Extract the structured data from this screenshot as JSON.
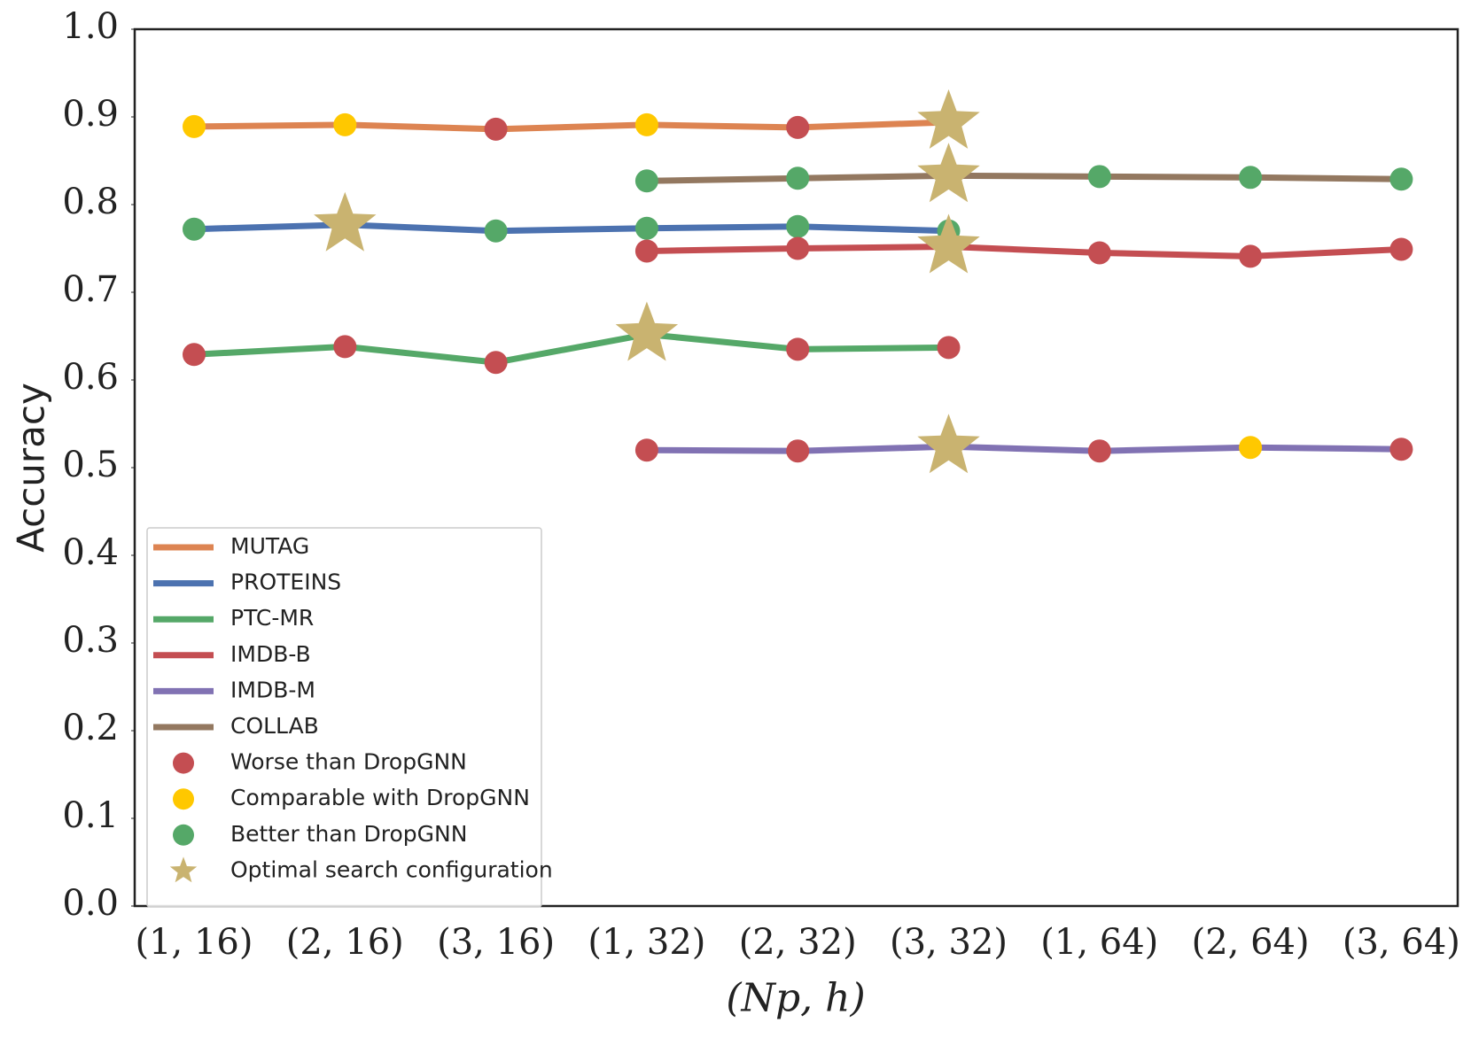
{
  "chart_data": {
    "type": "line",
    "ylabel": "Accuracy",
    "xlabel": "(Np, h)",
    "categories": [
      "(1, 16)",
      "(2, 16)",
      "(3, 16)",
      "(1, 32)",
      "(2, 32)",
      "(3, 32)",
      "(1, 64)",
      "(2, 64)",
      "(3, 64)"
    ],
    "ylim": [
      0,
      1
    ],
    "yticks": [
      {
        "value": 0,
        "label": "0.0"
      },
      {
        "value": 0.1,
        "label": "0.1"
      },
      {
        "value": 0.2,
        "label": "0.2"
      },
      {
        "value": 0.3,
        "label": "0.3"
      },
      {
        "value": 0.4,
        "label": "0.4"
      },
      {
        "value": 0.5,
        "label": "0.5"
      },
      {
        "value": 0.6,
        "label": "0.6"
      },
      {
        "value": 0.7,
        "label": "0.7"
      },
      {
        "value": 0.8,
        "label": "0.8"
      },
      {
        "value": 0.9,
        "label": "0.9"
      },
      {
        "value": 1,
        "label": "1.0"
      }
    ],
    "legend": "lower left",
    "series": [
      {
        "name": "MUTAG",
        "color": "#dd8452",
        "values": [
          0.889,
          0.891,
          0.886,
          0.891,
          0.888,
          0.894,
          null,
          null,
          null
        ],
        "point_kinds": [
          1,
          1,
          0,
          1,
          0,
          3,
          null,
          null,
          null
        ]
      },
      {
        "name": "PROTEINS",
        "color": "#4c72b0",
        "values": [
          0.772,
          0.777,
          0.77,
          0.773,
          0.775,
          0.77,
          null,
          null,
          null
        ],
        "point_kinds": [
          2,
          3,
          2,
          2,
          2,
          2,
          null,
          null,
          null
        ]
      },
      {
        "name": "PTC-MR",
        "color": "#55a868",
        "values": [
          0.629,
          0.638,
          0.62,
          0.652,
          0.635,
          0.637,
          null,
          null,
          null
        ],
        "point_kinds": [
          0,
          0,
          0,
          3,
          0,
          0,
          null,
          null,
          null
        ]
      },
      {
        "name": "IMDB-B",
        "color": "#c44e52",
        "values": [
          null,
          null,
          null,
          0.747,
          0.75,
          0.752,
          0.745,
          0.741,
          0.749
        ],
        "point_kinds": [
          null,
          null,
          null,
          0,
          0,
          3,
          0,
          0,
          0
        ]
      },
      {
        "name": "IMDB-M",
        "color": "#8172b3",
        "values": [
          null,
          null,
          null,
          0.52,
          0.519,
          0.524,
          0.519,
          0.523,
          0.521
        ],
        "point_kinds": [
          null,
          null,
          null,
          0,
          0,
          3,
          0,
          1,
          0
        ]
      },
      {
        "name": "COLLAB",
        "color": "#937860",
        "values": [
          null,
          null,
          null,
          0.827,
          0.83,
          0.833,
          0.832,
          0.831,
          0.829
        ],
        "point_kinds": [
          null,
          null,
          null,
          2,
          2,
          3,
          2,
          2,
          2
        ]
      }
    ],
    "point_legend": [
      {
        "label": "Worse than DropGNN",
        "color": "#c44e52",
        "shape": "circle"
      },
      {
        "label": "Comparable with DropGNN",
        "color": "#ffc800",
        "shape": "circle"
      },
      {
        "label": "Better than DropGNN",
        "color": "#55a868",
        "shape": "circle"
      },
      {
        "label": "Optimal search configuration",
        "color": "#c9b370",
        "shape": "star"
      }
    ]
  }
}
